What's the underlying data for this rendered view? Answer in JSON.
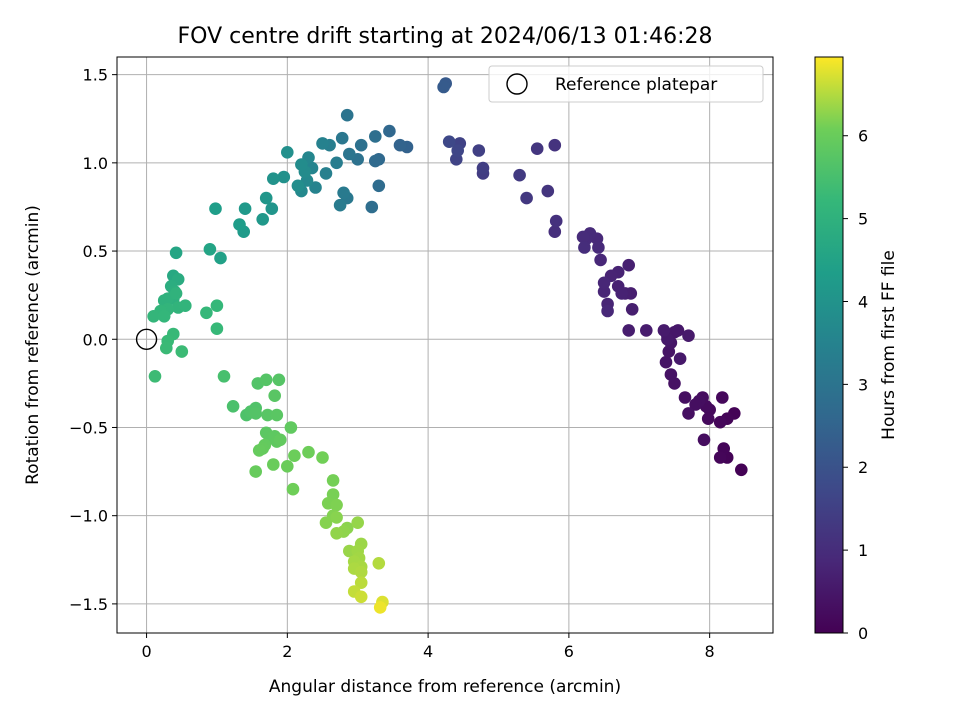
{
  "chart_data": {
    "type": "scatter",
    "title": "FOV centre drift starting at 2024/06/13 01:46:28",
    "xlabel": "Angular distance from reference (arcmin)",
    "ylabel": "Rotation from reference (arcmin)",
    "xlim": [
      -0.42,
      8.9
    ],
    "ylim": [
      -1.665,
      1.6
    ],
    "xticks": [
      0,
      2,
      4,
      6,
      8
    ],
    "yticks": [
      -1.5,
      -1.0,
      -0.5,
      0.0,
      0.5,
      1.0,
      1.5
    ],
    "grid": true,
    "legend": {
      "label": "Reference platepar",
      "placement": "top-right"
    },
    "reference_point": {
      "x": 0,
      "y": 0
    },
    "colorbar": {
      "label": "Hours from first FF file",
      "ticks": [
        0,
        1,
        2,
        3,
        4,
        5,
        6
      ],
      "range": [
        0,
        6.95
      ],
      "colormap": "viridis"
    },
    "points": [
      [
        8.45,
        -0.74,
        0.02
      ],
      [
        8.35,
        -0.42,
        0.04
      ],
      [
        8.25,
        -0.67,
        0.06
      ],
      [
        8.25,
        -0.45,
        0.08
      ],
      [
        8.2,
        -0.62,
        0.1
      ],
      [
        8.15,
        -0.67,
        0.12
      ],
      [
        8.15,
        -0.47,
        0.14
      ],
      [
        8.18,
        -0.33,
        0.16
      ],
      [
        8.0,
        -0.4,
        0.18
      ],
      [
        7.98,
        -0.45,
        0.2
      ],
      [
        7.95,
        -0.38,
        0.22
      ],
      [
        7.9,
        -0.33,
        0.24
      ],
      [
        7.92,
        -0.57,
        0.26
      ],
      [
        7.85,
        -0.35,
        0.28
      ],
      [
        7.8,
        -0.37,
        0.3
      ],
      [
        7.65,
        -0.33,
        0.32
      ],
      [
        7.7,
        -0.42,
        0.34
      ],
      [
        7.5,
        -0.25,
        0.36
      ],
      [
        7.45,
        -0.2,
        0.38
      ],
      [
        7.38,
        -0.13,
        0.4
      ],
      [
        7.42,
        -0.07,
        0.42
      ],
      [
        7.4,
        0.02,
        0.44
      ],
      [
        7.45,
        -0.02,
        0.46
      ],
      [
        7.5,
        0.04,
        0.48
      ],
      [
        7.55,
        0.05,
        0.5
      ],
      [
        7.58,
        -0.11,
        0.52
      ],
      [
        7.4,
        0.0,
        0.54
      ],
      [
        7.7,
        0.02,
        0.56
      ],
      [
        7.35,
        0.05,
        0.58
      ],
      [
        7.1,
        0.05,
        0.6
      ],
      [
        6.85,
        0.05,
        0.62
      ],
      [
        6.88,
        0.26,
        0.64
      ],
      [
        6.9,
        0.17,
        0.66
      ],
      [
        6.8,
        0.26,
        0.68
      ],
      [
        6.85,
        0.42,
        0.7
      ],
      [
        6.7,
        0.3,
        0.72
      ],
      [
        6.75,
        0.26,
        0.74
      ],
      [
        6.7,
        0.38,
        0.76
      ],
      [
        6.6,
        0.36,
        0.78
      ],
      [
        6.55,
        0.2,
        0.8
      ],
      [
        6.5,
        0.27,
        0.82
      ],
      [
        6.5,
        0.32,
        0.84
      ],
      [
        6.55,
        0.16,
        0.86
      ],
      [
        6.45,
        0.45,
        0.88
      ],
      [
        6.4,
        0.57,
        0.9
      ],
      [
        6.42,
        0.52,
        0.92
      ],
      [
        6.3,
        0.6,
        0.94
      ],
      [
        6.25,
        0.57,
        0.96
      ],
      [
        6.2,
        0.58,
        0.98
      ],
      [
        6.22,
        0.52,
        1.0
      ],
      [
        5.8,
        0.61,
        1.05
      ],
      [
        5.82,
        0.67,
        1.1
      ],
      [
        5.8,
        1.1,
        1.15
      ],
      [
        5.7,
        0.84,
        1.2
      ],
      [
        5.55,
        1.08,
        1.25
      ],
      [
        5.4,
        0.8,
        1.3
      ],
      [
        5.3,
        0.93,
        1.35
      ],
      [
        4.78,
        0.94,
        1.4
      ],
      [
        4.78,
        0.97,
        1.45
      ],
      [
        4.72,
        1.07,
        1.5
      ],
      [
        4.45,
        1.11,
        1.55
      ],
      [
        4.4,
        1.02,
        1.6
      ],
      [
        4.42,
        1.07,
        1.65
      ],
      [
        4.3,
        1.12,
        1.7
      ],
      [
        4.25,
        1.45,
        2.2
      ],
      [
        4.22,
        1.43,
        2.25
      ],
      [
        3.7,
        1.09,
        2.45
      ],
      [
        3.6,
        1.1,
        2.5
      ],
      [
        3.45,
        1.18,
        2.6
      ],
      [
        3.3,
        1.02,
        2.65
      ],
      [
        3.25,
        1.01,
        2.7
      ],
      [
        3.3,
        0.87,
        2.75
      ],
      [
        3.2,
        0.75,
        2.8
      ],
      [
        3.25,
        1.15,
        2.85
      ],
      [
        3.05,
        1.1,
        2.9
      ],
      [
        3.0,
        1.02,
        2.95
      ],
      [
        2.85,
        1.27,
        3.0
      ],
      [
        2.88,
        1.05,
        3.05
      ],
      [
        2.78,
        1.14,
        3.1
      ],
      [
        2.85,
        0.8,
        3.15
      ],
      [
        2.8,
        0.83,
        3.2
      ],
      [
        2.75,
        0.76,
        3.25
      ],
      [
        2.7,
        1.0,
        3.3
      ],
      [
        2.6,
        1.1,
        3.35
      ],
      [
        2.55,
        0.94,
        3.4
      ],
      [
        2.5,
        1.11,
        3.45
      ],
      [
        2.4,
        0.86,
        3.5
      ],
      [
        2.35,
        0.97,
        3.55
      ],
      [
        2.3,
        1.03,
        3.6
      ],
      [
        2.28,
        0.9,
        3.65
      ],
      [
        2.2,
        0.84,
        3.7
      ],
      [
        2.25,
        0.95,
        3.75
      ],
      [
        2.2,
        0.99,
        3.8
      ],
      [
        2.15,
        0.87,
        3.85
      ],
      [
        2.0,
        1.06,
        3.9
      ],
      [
        1.95,
        0.92,
        3.95
      ],
      [
        1.8,
        0.91,
        4.0
      ],
      [
        1.78,
        0.74,
        4.05
      ],
      [
        1.7,
        0.8,
        4.1
      ],
      [
        1.65,
        0.68,
        4.15
      ],
      [
        1.4,
        0.74,
        4.2
      ],
      [
        1.38,
        0.61,
        4.25
      ],
      [
        1.32,
        0.65,
        4.3
      ],
      [
        0.98,
        0.74,
        4.35
      ],
      [
        1.05,
        0.46,
        4.45
      ],
      [
        0.9,
        0.51,
        4.55
      ],
      [
        0.42,
        0.49,
        4.6
      ],
      [
        0.38,
        0.36,
        4.7
      ],
      [
        0.45,
        0.34,
        4.8
      ],
      [
        0.35,
        0.3,
        4.85
      ],
      [
        0.4,
        0.27,
        4.9
      ],
      [
        0.38,
        0.23,
        4.95
      ],
      [
        0.3,
        0.23,
        5.0
      ],
      [
        0.25,
        0.22,
        5.02
      ],
      [
        0.42,
        0.26,
        5.05
      ],
      [
        0.45,
        0.18,
        5.08
      ],
      [
        0.55,
        0.19,
        5.1
      ],
      [
        0.3,
        0.17,
        5.12
      ],
      [
        0.2,
        0.16,
        5.14
      ],
      [
        0.1,
        0.13,
        5.16
      ],
      [
        0.25,
        0.13,
        5.18
      ],
      [
        0.85,
        0.15,
        5.2
      ],
      [
        1.0,
        0.19,
        5.22
      ],
      [
        1.0,
        0.06,
        5.24
      ],
      [
        0.38,
        0.03,
        5.26
      ],
      [
        0.3,
        -0.01,
        5.28
      ],
      [
        0.28,
        -0.05,
        5.3
      ],
      [
        0.5,
        -0.07,
        5.32
      ],
      [
        0.12,
        -0.21,
        5.34
      ],
      [
        1.1,
        -0.21,
        5.5
      ],
      [
        1.23,
        -0.38,
        5.55
      ],
      [
        1.42,
        -0.43,
        5.6
      ],
      [
        1.48,
        -0.41,
        5.62
      ],
      [
        1.55,
        -0.39,
        5.64
      ],
      [
        1.58,
        -0.25,
        5.66
      ],
      [
        1.55,
        -0.42,
        5.68
      ],
      [
        1.7,
        -0.23,
        5.7
      ],
      [
        1.88,
        -0.23,
        5.72
      ],
      [
        1.72,
        -0.43,
        5.74
      ],
      [
        1.82,
        -0.32,
        5.76
      ],
      [
        1.85,
        -0.43,
        5.78
      ],
      [
        1.7,
        -0.53,
        5.8
      ],
      [
        1.75,
        -0.56,
        5.82
      ],
      [
        1.82,
        -0.55,
        5.84
      ],
      [
        1.85,
        -0.58,
        5.86
      ],
      [
        2.05,
        -0.5,
        5.88
      ],
      [
        1.9,
        -0.57,
        5.9
      ],
      [
        1.68,
        -0.6,
        5.92
      ],
      [
        1.65,
        -0.62,
        5.94
      ],
      [
        1.6,
        -0.63,
        5.96
      ],
      [
        1.55,
        -0.75,
        5.98
      ],
      [
        1.8,
        -0.71,
        6.0
      ],
      [
        2.0,
        -0.72,
        6.02
      ],
      [
        2.1,
        -0.66,
        6.04
      ],
      [
        2.3,
        -0.64,
        6.06
      ],
      [
        2.08,
        -0.85,
        6.08
      ],
      [
        2.5,
        -0.67,
        6.1
      ],
      [
        2.65,
        -0.8,
        6.12
      ],
      [
        2.65,
        -0.88,
        6.14
      ],
      [
        2.58,
        -0.93,
        6.16
      ],
      [
        2.7,
        -0.94,
        6.18
      ],
      [
        2.65,
        -1.0,
        6.2
      ],
      [
        2.55,
        -1.04,
        6.22
      ],
      [
        2.7,
        -1.01,
        6.24
      ],
      [
        2.85,
        -1.07,
        6.26
      ],
      [
        2.8,
        -1.09,
        6.28
      ],
      [
        2.7,
        -1.1,
        6.3
      ],
      [
        3.0,
        -1.04,
        6.32
      ],
      [
        2.88,
        -1.2,
        6.34
      ],
      [
        3.05,
        -1.16,
        6.36
      ],
      [
        3.0,
        -1.2,
        6.38
      ],
      [
        3.02,
        -1.24,
        6.4
      ],
      [
        2.95,
        -1.26,
        6.42
      ],
      [
        3.05,
        -1.29,
        6.44
      ],
      [
        2.95,
        -1.3,
        6.46
      ],
      [
        3.05,
        -1.32,
        6.48
      ],
      [
        3.3,
        -1.27,
        6.5
      ],
      [
        3.05,
        -1.38,
        6.55
      ],
      [
        2.95,
        -1.43,
        6.6
      ],
      [
        3.05,
        -1.46,
        6.65
      ],
      [
        3.35,
        -1.49,
        6.75
      ],
      [
        3.32,
        -1.52,
        6.85
      ]
    ]
  }
}
